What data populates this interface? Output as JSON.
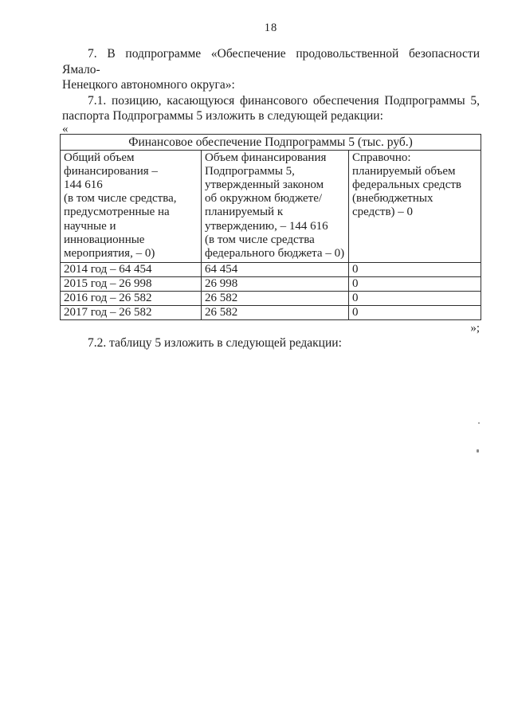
{
  "page": {
    "number": "18"
  },
  "paragraphs": {
    "p7": {
      "line1": "7. В подпрограмме «Обеспечение продовольственной безопасности Ямало-",
      "line2": "Ненецкого автономного округа»:"
    },
    "p7_1": {
      "line1": "7.1. позицию, касающуюся финансового обеспечения Подпрограммы 5,",
      "line2": "паспорта Подпрограммы 5 изложить в следующей редакции:"
    },
    "open_quote": "«",
    "close_quote": "»;",
    "p7_2": "7.2. таблицу 5  изложить в следующей редакции:"
  },
  "table": {
    "title": "Финансовое обеспечение Подпрограммы 5 (тыс. руб.)",
    "columns": [
      "Общий объем\nфинансирования –\n144 616\n(в том числе средства,\nпредусмотренные на\nнаучные и\nинновационные\nмероприятия, – 0)",
      "Объем финансирования\nПодпрограммы 5,\nутвержденный законом\nоб окружном бюджете/\nпланируемый к\nутверждению, – 144 616\n(в том числе средства\nфедерального бюджета – 0)",
      "Справочно:\nпланируемый объем\nфедеральных средств\n(внебюджетных\nсредств) – 0"
    ],
    "rows": [
      [
        "2014 год – 64 454",
        "64 454",
        "0"
      ],
      [
        "2015 год – 26 998",
        "26 998",
        "0"
      ],
      [
        "2016 год – 26 582",
        "26 582",
        "0"
      ],
      [
        "2017 год – 26 582",
        "26 582",
        "0"
      ]
    ]
  },
  "colors": {
    "text": "#1e1e1e",
    "border": "#2e2e2e",
    "background": "#ffffff"
  }
}
